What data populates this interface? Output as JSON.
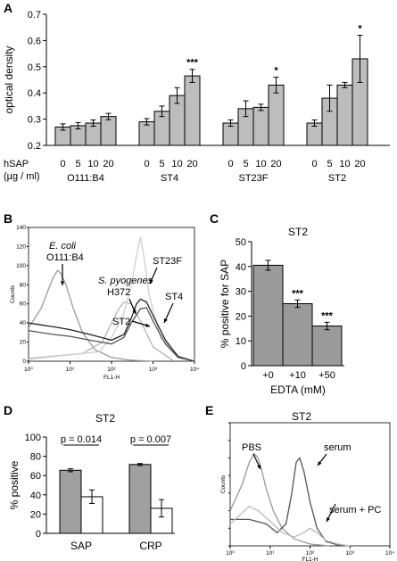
{
  "chart_data": [
    {
      "panel": "A",
      "type": "bar",
      "ylabel": "optical density",
      "ylim": [
        0.2,
        0.7
      ],
      "yticks": [
        "0.2",
        "0.3",
        "0.4",
        "0.5",
        "0.6",
        "0.7"
      ],
      "dose_label_1": "hSAP",
      "dose_label_2": "(µg / ml)",
      "doses": [
        "0",
        "5",
        "10",
        "20"
      ],
      "groups": [
        {
          "name": "O111:B4",
          "values": [
            0.27,
            0.275,
            0.285,
            0.31
          ],
          "errors": [
            0.012,
            0.012,
            0.012,
            0.012
          ],
          "sig": ""
        },
        {
          "name": "ST4",
          "values": [
            0.29,
            0.33,
            0.39,
            0.465
          ],
          "errors": [
            0.012,
            0.02,
            0.03,
            0.025
          ],
          "sig": "***"
        },
        {
          "name": "ST23F",
          "values": [
            0.285,
            0.34,
            0.345,
            0.43
          ],
          "errors": [
            0.012,
            0.03,
            0.012,
            0.03
          ],
          "sig": "*"
        },
        {
          "name": "ST2",
          "values": [
            0.285,
            0.38,
            0.43,
            0.53
          ],
          "errors": [
            0.012,
            0.05,
            0.01,
            0.09
          ],
          "sig": "*"
        }
      ]
    },
    {
      "panel": "B",
      "type": "line",
      "ylabel": "Counts",
      "xlabel": "FL1-H",
      "ylim": [
        0,
        140
      ],
      "yticks": [
        "0",
        "20",
        "40",
        "60",
        "80",
        "100",
        "120",
        "140"
      ],
      "xticks": [
        "10⁰",
        "10¹",
        "10²",
        "10³",
        "10⁴"
      ],
      "xscale": "log",
      "annotations": [
        "E. coli",
        "O111:B4",
        "S. pyogenes",
        "H372",
        "ST23F",
        "ST4",
        "ST2"
      ],
      "series": [
        {
          "name": "O111:B4",
          "color": "#9a9a9a",
          "x": [
            1,
            2,
            3,
            4,
            5,
            6,
            8,
            12,
            20,
            40,
            100,
            300,
            1000
          ],
          "y": [
            35,
            55,
            75,
            88,
            95,
            92,
            80,
            55,
            30,
            12,
            4,
            1,
            0
          ]
        },
        {
          "name": "H372",
          "color": "#b5b5b5",
          "x": [
            1,
            20,
            60,
            100,
            150,
            200,
            300,
            400,
            600,
            1000,
            3000
          ],
          "y": [
            3,
            8,
            20,
            40,
            55,
            62,
            60,
            50,
            35,
            15,
            1
          ]
        },
        {
          "name": "ST23F",
          "color": "#cfcfcf",
          "x": [
            1,
            50,
            100,
            200,
            300,
            400,
            500,
            600,
            800,
            1500,
            5000
          ],
          "y": [
            2,
            10,
            25,
            50,
            80,
            110,
            130,
            110,
            70,
            25,
            2
          ]
        },
        {
          "name": "ST4",
          "color": "#222222",
          "x": [
            1,
            2,
            4,
            10,
            30,
            100,
            200,
            300,
            400,
            500,
            700,
            1000,
            2000,
            4000,
            10000
          ],
          "y": [
            40,
            38,
            36,
            33,
            28,
            22,
            28,
            45,
            60,
            65,
            62,
            48,
            22,
            5,
            0
          ]
        },
        {
          "name": "ST2",
          "color": "#555555",
          "x": [
            1,
            2,
            4,
            10,
            30,
            100,
            200,
            300,
            500,
            700,
            1000,
            2000,
            4000,
            10000
          ],
          "y": [
            32,
            30,
            28,
            26,
            22,
            18,
            25,
            40,
            55,
            56,
            42,
            18,
            4,
            0
          ]
        }
      ]
    },
    {
      "panel": "C",
      "type": "bar",
      "title": "ST2",
      "ylabel": "% positive for SAP",
      "xlabel": "EDTA (mM)",
      "ylim": [
        0,
        50
      ],
      "yticks": [
        "0",
        "10",
        "20",
        "30",
        "40",
        "50"
      ],
      "categories": [
        "+0",
        "+10",
        "+50"
      ],
      "values": [
        40.5,
        25,
        16
      ],
      "errors": [
        2,
        1.5,
        1.5
      ],
      "sig": [
        "",
        "***",
        "***"
      ]
    },
    {
      "panel": "D",
      "type": "bar",
      "title": "ST2",
      "ylabel": "% positive",
      "ylim": [
        0,
        100
      ],
      "yticks": [
        "0",
        "20",
        "40",
        "60",
        "80",
        "100"
      ],
      "categories": [
        "SAP",
        "CRP"
      ],
      "series": [
        {
          "values": [
            65.5,
            71.5
          ],
          "errors": [
            1.5,
            1
          ],
          "color": "#a0a0a0"
        },
        {
          "values": [
            38,
            26
          ],
          "errors": [
            7,
            9
          ],
          "color": "#ffffff"
        }
      ],
      "pvalues": [
        "p = 0.014",
        "p = 0.007"
      ]
    },
    {
      "panel": "E",
      "type": "line",
      "title": "ST2",
      "ylabel": "Counts",
      "xlabel": "FL1-H",
      "ylim": [
        0,
        140
      ],
      "xscale": "log",
      "xticks": [
        "10⁰",
        "10¹",
        "10²",
        "10³",
        "10⁴"
      ],
      "annotations": [
        "PBS",
        "serum",
        "serum + PC"
      ],
      "series": [
        {
          "name": "PBS",
          "color": "#999999",
          "x": [
            1,
            2,
            3,
            4,
            5,
            6,
            8,
            12,
            20,
            40,
            100,
            300
          ],
          "y": [
            40,
            70,
            95,
            105,
            100,
            88,
            65,
            40,
            20,
            8,
            2,
            0
          ]
        },
        {
          "name": "serum",
          "color": "#555555",
          "x": [
            1,
            3,
            8,
            15,
            25,
            35,
            45,
            55,
            70,
            100,
            150,
            250,
            500,
            1000
          ],
          "y": [
            30,
            30,
            25,
            15,
            25,
            60,
            95,
            100,
            85,
            50,
            20,
            5,
            1,
            0
          ]
        },
        {
          "name": "serum + PC",
          "color": "#bbbbbb",
          "x": [
            1,
            3,
            5,
            10,
            20,
            40,
            70,
            100,
            150,
            250,
            500,
            1000
          ],
          "y": [
            25,
            45,
            40,
            28,
            15,
            10,
            15,
            20,
            15,
            6,
            2,
            0
          ]
        }
      ]
    }
  ]
}
